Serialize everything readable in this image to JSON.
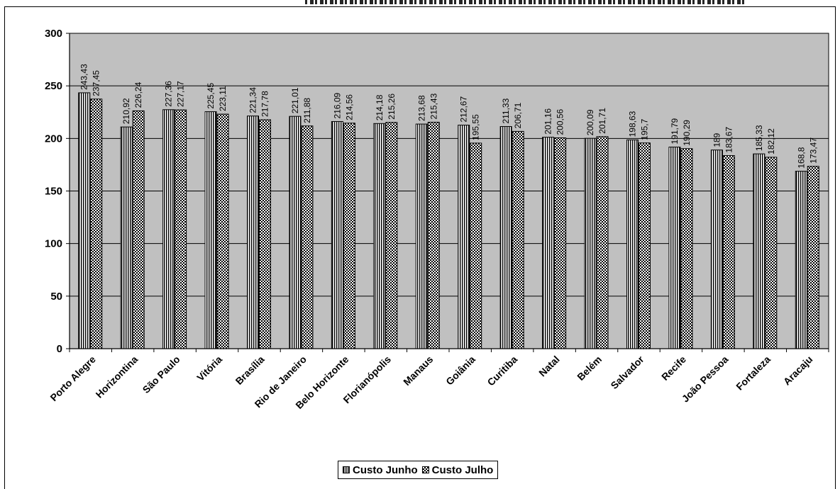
{
  "chart_data": {
    "type": "bar",
    "title": "",
    "xlabel": "",
    "ylabel": "",
    "ylim": [
      0,
      300
    ],
    "yticks": [
      0,
      50,
      100,
      150,
      200,
      250,
      300
    ],
    "grid": true,
    "legend_position": "bottom",
    "categories": [
      "Porto Alegre",
      "Horizontina",
      "São Paulo",
      "Vitória",
      "Brasília",
      "Rio de Janeiro",
      "Belo Horizonte",
      "Florianópolis",
      "Manaus",
      "Goiânia",
      "Curitiba",
      "Natal",
      "Belém",
      "Salvador",
      "Recife",
      "João Pessoa",
      "Fortaleza",
      "Aracaju"
    ],
    "series": [
      {
        "name": "Custo Junho",
        "values": [
          243.43,
          210.92,
          227.36,
          225.45,
          221.34,
          221.01,
          216.09,
          214.18,
          213.68,
          212.67,
          211.33,
          201.16,
          200.09,
          198.63,
          191.79,
          189,
          185.33,
          168.8
        ],
        "labels": [
          "243,43",
          "210,92",
          "227,36",
          "225,45",
          "221,34",
          "221,01",
          "216,09",
          "214,18",
          "213,68",
          "212,67",
          "211,33",
          "201,16",
          "200,09",
          "198,63",
          "191,79",
          "189",
          "185,33",
          "168,8"
        ]
      },
      {
        "name": "Custo Julho",
        "values": [
          237.45,
          226.24,
          227.17,
          223.11,
          217.78,
          211.88,
          214.56,
          215.26,
          215.43,
          195.55,
          206.71,
          200.56,
          201.71,
          195.7,
          190.29,
          183.67,
          182.12,
          173.47
        ],
        "labels": [
          "237,45",
          "226,24",
          "227,17",
          "223,11",
          "217,78",
          "211,88",
          "214,56",
          "215,26",
          "215,43",
          "195,55",
          "206,71",
          "200,56",
          "201,71",
          "195,7",
          "190,29",
          "183,67",
          "182,12",
          "173,47"
        ]
      }
    ],
    "colors": {
      "plot_background": "#c0c0c0",
      "bar_fill": "#ffffff",
      "bar_pattern": "#000000"
    }
  }
}
